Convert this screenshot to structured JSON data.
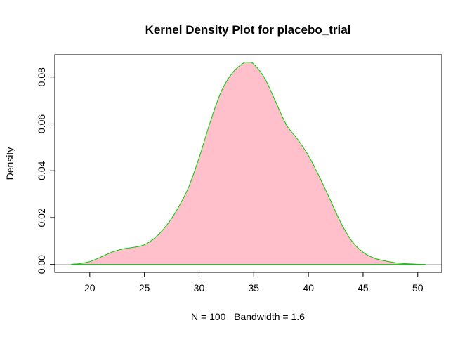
{
  "chart_data": {
    "type": "area",
    "title": "Kernel Density Plot for placebo_trial",
    "xlabel": "N = 100   Bandwidth = 1.6",
    "ylabel": "Density",
    "xlim": [
      16.8,
      52.2
    ],
    "ylim": [
      -0.0034,
      0.0895
    ],
    "x_ticks": [
      20,
      25,
      30,
      35,
      40,
      45,
      50
    ],
    "x_tick_labels": [
      "20",
      "25",
      "30",
      "35",
      "40",
      "45",
      "50"
    ],
    "y_ticks": [
      0.0,
      0.02,
      0.04,
      0.06,
      0.08
    ],
    "y_tick_labels": [
      "0.00",
      "0.02",
      "0.04",
      "0.06",
      "0.08"
    ],
    "grid": false,
    "fill_color": "#FFC0CB",
    "line_color": "#00CC00",
    "baseline_color": "#BEBEBE",
    "series": [
      {
        "x": [
          18.3,
          19.0,
          20.0,
          21.0,
          22.0,
          23.0,
          24.0,
          25.0,
          26.0,
          27.0,
          28.0,
          29.0,
          30.0,
          31.0,
          32.0,
          33.0,
          34.0,
          34.5,
          35.0,
          36.0,
          37.0,
          38.0,
          39.0,
          40.0,
          41.0,
          42.0,
          43.0,
          44.0,
          45.0,
          46.0,
          47.0,
          48.0,
          49.0,
          50.0,
          50.7
        ],
        "y": [
          0.0001,
          0.0003,
          0.0012,
          0.0031,
          0.0052,
          0.0066,
          0.0073,
          0.0084,
          0.0115,
          0.0165,
          0.0235,
          0.0325,
          0.0455,
          0.0605,
          0.0735,
          0.0815,
          0.0858,
          0.0863,
          0.0855,
          0.0795,
          0.0695,
          0.0595,
          0.0535,
          0.0465,
          0.0375,
          0.0275,
          0.0175,
          0.0098,
          0.0052,
          0.0027,
          0.0015,
          0.0007,
          0.0003,
          0.0001,
          0.0
        ]
      }
    ]
  }
}
